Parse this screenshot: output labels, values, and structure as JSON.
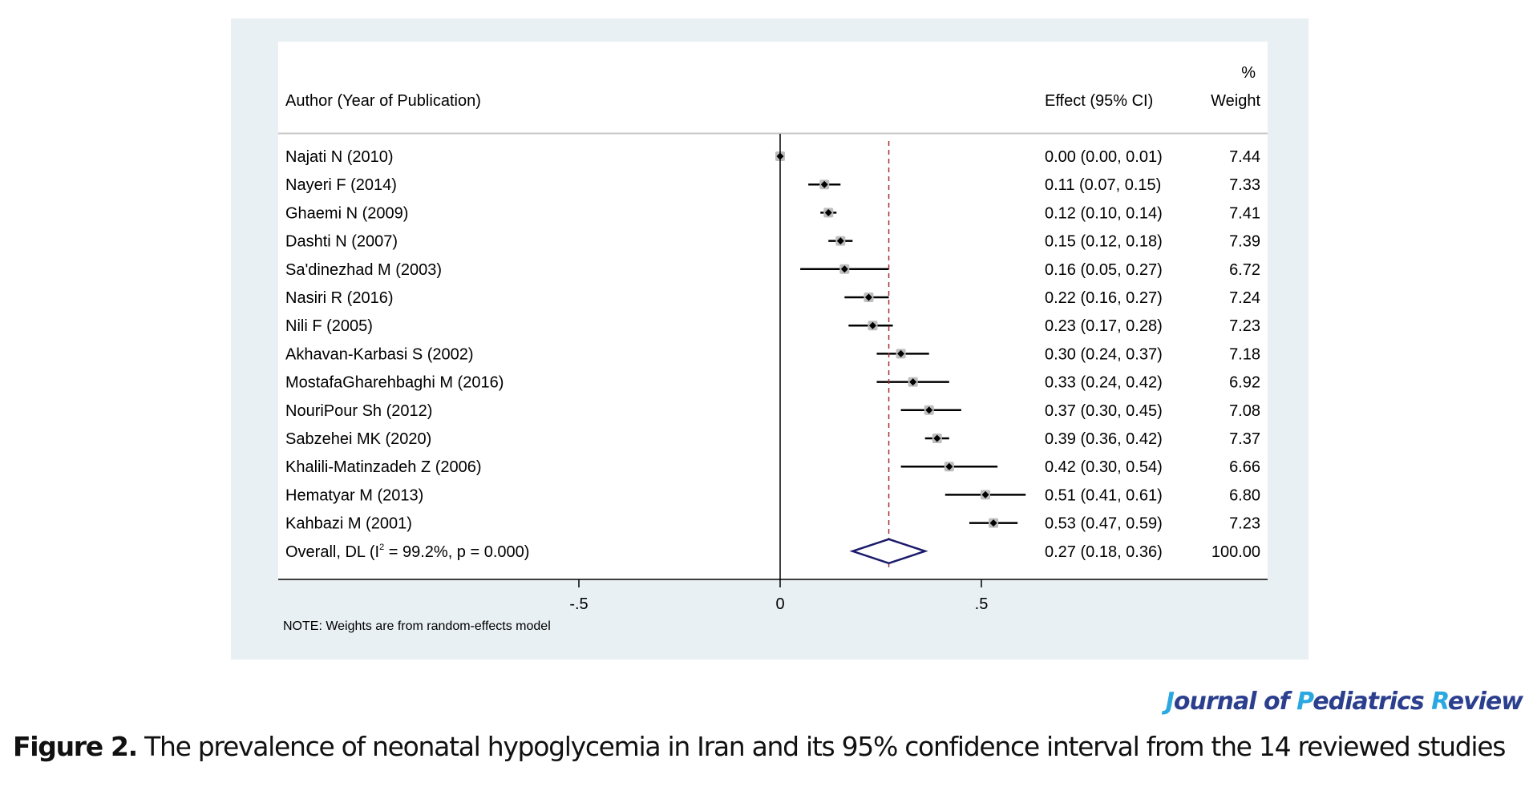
{
  "figure": {
    "caption_label": "Figure 2.",
    "caption_text": " The prevalence of neonatal hypoglycemia in Iran and its 95% confidence interval from the 14 reviewed studies",
    "journal": {
      "parts": [
        {
          "text": "J",
          "accent": true
        },
        {
          "text": "ournal of ",
          "accent": false
        },
        {
          "text": "P",
          "accent": true
        },
        {
          "text": "ediatrics ",
          "accent": false
        },
        {
          "text": "R",
          "accent": true
        },
        {
          "text": "eview",
          "accent": false
        }
      ],
      "colors": {
        "main": "#2b3f8e",
        "accent": "#2aa8e0"
      }
    }
  },
  "chart_data": {
    "type": "forest",
    "header": {
      "author_col": "Author (Year of Publication)",
      "effect_col": "Effect (95% CI)",
      "weight_col_top": "%",
      "weight_col": "Weight"
    },
    "studies": [
      {
        "label": "Najati N (2010)",
        "effect": 0.0,
        "lo": 0.0,
        "hi": 0.01,
        "effect_text": "0.00 (0.00, 0.01)",
        "weight": "7.44"
      },
      {
        "label": "Nayeri F (2014)",
        "effect": 0.11,
        "lo": 0.07,
        "hi": 0.15,
        "effect_text": "0.11 (0.07, 0.15)",
        "weight": "7.33"
      },
      {
        "label": "Ghaemi N (2009)",
        "effect": 0.12,
        "lo": 0.1,
        "hi": 0.14,
        "effect_text": "0.12 (0.10, 0.14)",
        "weight": "7.41"
      },
      {
        "label": "Dashti N (2007)",
        "effect": 0.15,
        "lo": 0.12,
        "hi": 0.18,
        "effect_text": "0.15 (0.12, 0.18)",
        "weight": "7.39"
      },
      {
        "label": "Sa'dinezhad M (2003)",
        "effect": 0.16,
        "lo": 0.05,
        "hi": 0.27,
        "effect_text": "0.16 (0.05, 0.27)",
        "weight": "6.72"
      },
      {
        "label": "Nasiri R (2016)",
        "effect": 0.22,
        "lo": 0.16,
        "hi": 0.27,
        "effect_text": "0.22 (0.16, 0.27)",
        "weight": "7.24"
      },
      {
        "label": "Nili F (2005)",
        "effect": 0.23,
        "lo": 0.17,
        "hi": 0.28,
        "effect_text": "0.23 (0.17, 0.28)",
        "weight": "7.23"
      },
      {
        "label": "Akhavan-Karbasi S (2002)",
        "effect": 0.3,
        "lo": 0.24,
        "hi": 0.37,
        "effect_text": "0.30 (0.24, 0.37)",
        "weight": "7.18"
      },
      {
        "label": "MostafaGharehbaghi M (2016)",
        "effect": 0.33,
        "lo": 0.24,
        "hi": 0.42,
        "effect_text": "0.33 (0.24, 0.42)",
        "weight": "6.92"
      },
      {
        "label": "NouriPour Sh (2012)",
        "effect": 0.37,
        "lo": 0.3,
        "hi": 0.45,
        "effect_text": "0.37 (0.30, 0.45)",
        "weight": "7.08"
      },
      {
        "label": "Sabzehei MK (2020)",
        "effect": 0.39,
        "lo": 0.36,
        "hi": 0.42,
        "effect_text": "0.39 (0.36, 0.42)",
        "weight": "7.37"
      },
      {
        "label": "Khalili-Matinzadeh Z (2006)",
        "effect": 0.42,
        "lo": 0.3,
        "hi": 0.54,
        "effect_text": "0.42 (0.30, 0.54)",
        "weight": "6.66"
      },
      {
        "label": "Hematyar M (2013)",
        "effect": 0.51,
        "lo": 0.41,
        "hi": 0.61,
        "effect_text": "0.51 (0.41, 0.61)",
        "weight": "6.80"
      },
      {
        "label": "Kahbazi M (2001)",
        "effect": 0.53,
        "lo": 0.47,
        "hi": 0.59,
        "effect_text": "0.53 (0.47, 0.59)",
        "weight": "7.23"
      }
    ],
    "overall": {
      "label_prefix": "Overall, DL (I",
      "label_sup": "2",
      "label_suffix": " = 99.2%, p = 0.000)",
      "effect": 0.27,
      "lo": 0.18,
      "hi": 0.36,
      "effect_text": "0.27 (0.18, 0.36)",
      "weight": "100.00"
    },
    "x_ticks": [
      {
        "value": -0.5,
        "label": "-.5"
      },
      {
        "value": 0,
        "label": "0"
      },
      {
        "value": 0.5,
        "label": ".5"
      }
    ],
    "null_line": 0,
    "xlim": [
      -1.02,
      0.6
    ],
    "note": "NOTE: Weights are from random-effects model",
    "colors": {
      "panel_bg": "#e9f0f3",
      "plot_bg": "#ffffff",
      "ci_line": "#000000",
      "marker_box": "#bdbdbd",
      "marker_dot": "#000000",
      "overall_line": "#a3303c",
      "diamond": "#1a1a6b",
      "separator": "#c8c8c8"
    }
  }
}
